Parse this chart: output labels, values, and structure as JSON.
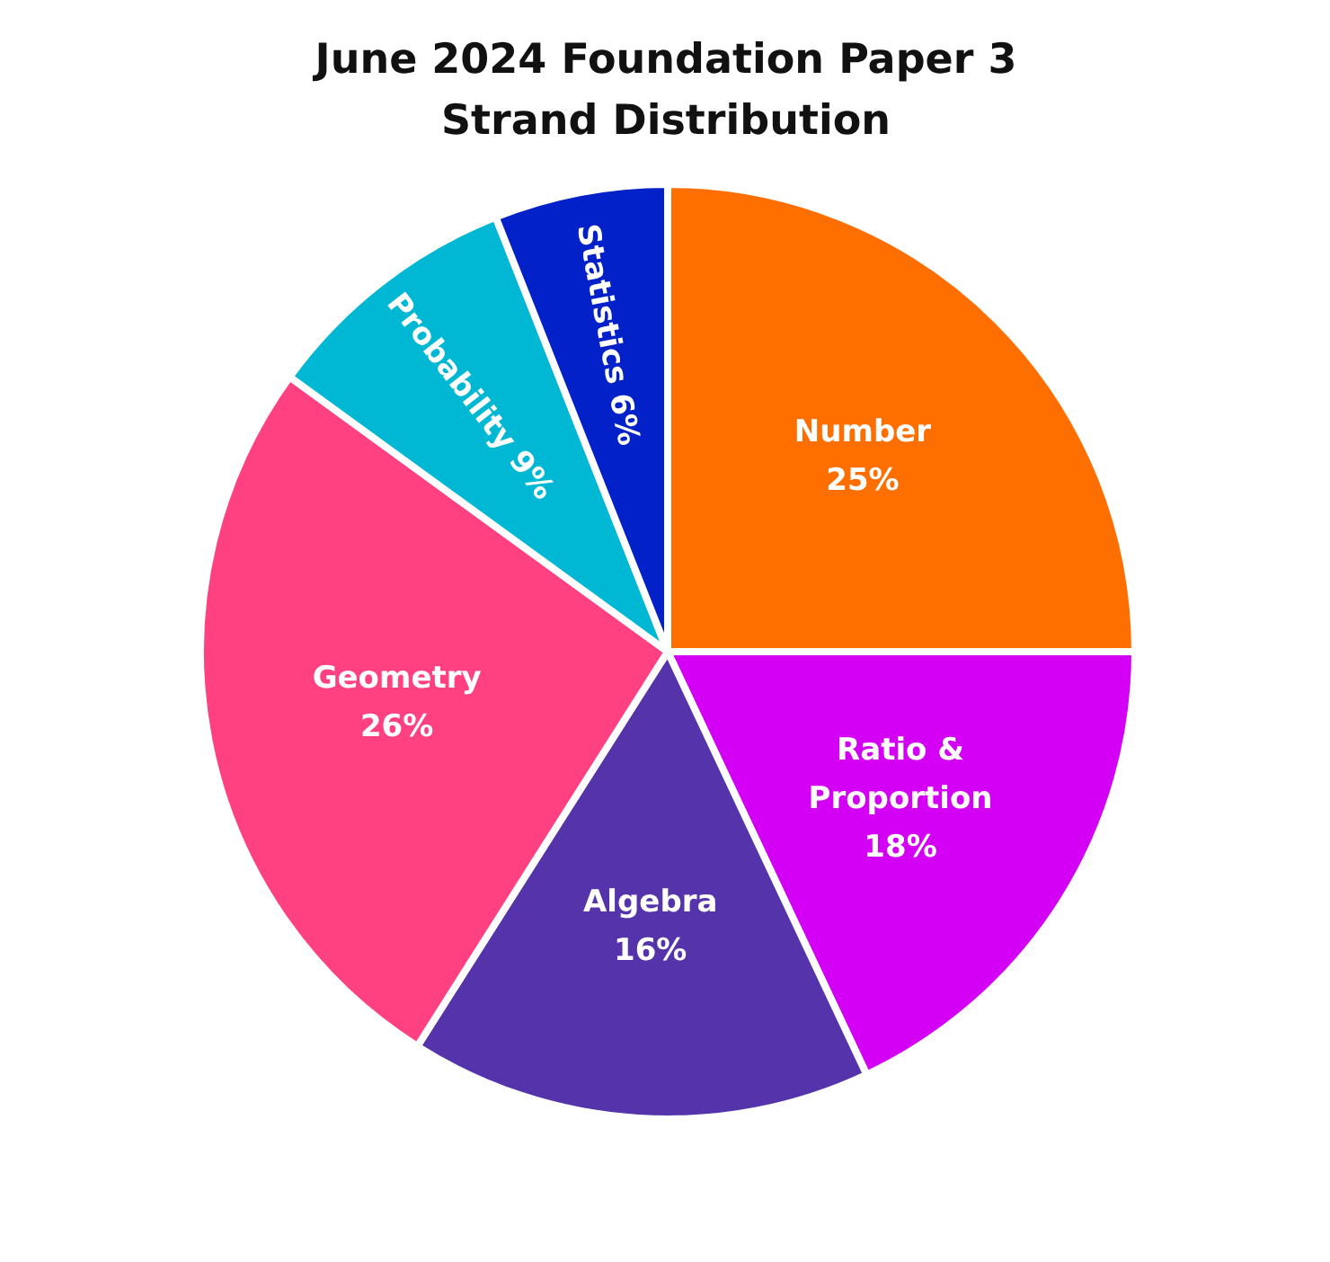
{
  "chart_data": {
    "type": "pie",
    "title": "June 2024 Foundation Paper 3 Strand Distribution",
    "categories": [
      "Number",
      "Ratio & Proportion",
      "Algebra",
      "Geometry",
      "Probability",
      "Statistics"
    ],
    "values": [
      25,
      18,
      16,
      26,
      9,
      6
    ],
    "colors": [
      "#ff6f00",
      "#d400f5",
      "#5433ab",
      "#ff4081",
      "#00b8d4",
      "#0321c8"
    ],
    "value_labels": [
      "25%",
      "18%",
      "16%",
      "26%",
      "9%",
      "6%"
    ]
  }
}
